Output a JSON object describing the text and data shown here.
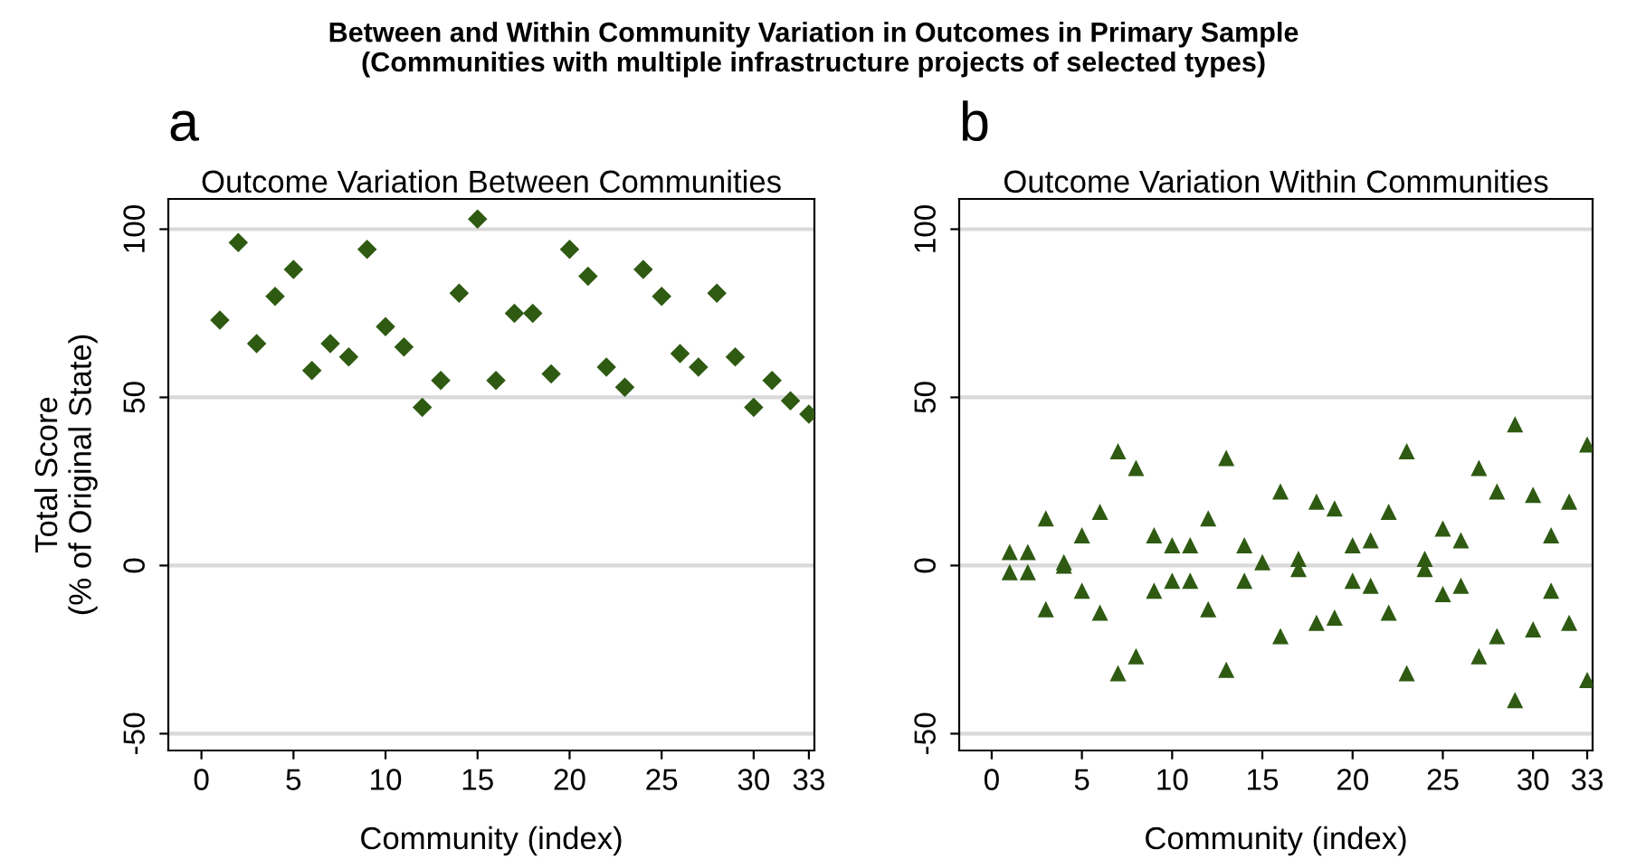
{
  "chart_data": [
    {
      "type": "scatter",
      "title": "Outcome Variation Between Communities",
      "xlabel": "Community (index)",
      "ylabel": "Total Score\n(% of Original State)",
      "annotations": [
        "Between and Within Community Variation in Outcomes in Primary Sample\n(Communities with multiple infrastructure projects of selected types)",
        "a"
      ],
      "x": [
        1,
        2,
        3,
        4,
        5,
        6,
        7,
        8,
        9,
        10,
        11,
        12,
        13,
        14,
        15,
        16,
        17,
        18,
        19,
        20,
        21,
        22,
        23,
        24,
        25,
        26,
        27,
        28,
        29,
        30,
        31,
        32,
        33
      ],
      "series": [
        {
          "color": "#2e5a12",
          "values": [
            73,
            96,
            66,
            80,
            88,
            58,
            66,
            62,
            94,
            71,
            65,
            47,
            55,
            81,
            103,
            55,
            75,
            75,
            57,
            94,
            86,
            59,
            53,
            88,
            80,
            63,
            59,
            81,
            62,
            47,
            55,
            49,
            45
          ]
        }
      ],
      "marker": "diamond",
      "grid": "y",
      "xlim": [
        -1.8,
        33.3
      ],
      "ylim": [
        -55,
        109
      ],
      "xticks": [
        0,
        5,
        10,
        15,
        20,
        25,
        30,
        33
      ],
      "yticks": [
        -50,
        0,
        50,
        100
      ]
    },
    {
      "type": "scatter",
      "title": "Outcome Variation Within Communities",
      "xlabel": "Community (index)",
      "annotations": [
        "b"
      ],
      "x": [
        1,
        1,
        2,
        2,
        3,
        3,
        4,
        4,
        5,
        5,
        6,
        6,
        7,
        7,
        8,
        8,
        9,
        9,
        10,
        10,
        11,
        11,
        12,
        12,
        13,
        13,
        14,
        14,
        15,
        16,
        16,
        17,
        17,
        18,
        18,
        19,
        19,
        20,
        20,
        21,
        21,
        22,
        22,
        23,
        23,
        24,
        24,
        25,
        25,
        26,
        26,
        27,
        27,
        28,
        28,
        29,
        29,
        30,
        30,
        31,
        31,
        32,
        32,
        33,
        33
      ],
      "series": [
        {
          "color": "#2e5a12",
          "values": [
            4,
            -2,
            4,
            -2,
            14,
            -13,
            1,
            0,
            9,
            -7.5,
            16,
            -14,
            34,
            -32,
            29,
            -27,
            9,
            -7.5,
            6,
            -4.5,
            6,
            -4.5,
            14,
            -13,
            32,
            -31,
            6,
            -4.5,
            1,
            22,
            -21,
            2,
            -1,
            19,
            -17,
            17,
            -15.5,
            6,
            -4.5,
            7.5,
            -6,
            16,
            -14,
            34,
            -32,
            2,
            -1,
            11,
            -8.5,
            7.5,
            -6,
            29,
            -27,
            22,
            -21,
            42,
            -40,
            21,
            -19,
            9,
            -7.5,
            19,
            -17,
            36,
            -34
          ]
        }
      ],
      "marker": "triangle",
      "grid": "y",
      "xlim": [
        -1.8,
        33.3
      ],
      "ylim": [
        -55,
        109
      ],
      "xticks": [
        0,
        5,
        10,
        15,
        20,
        25,
        30,
        33
      ],
      "yticks": [
        -50,
        0,
        50,
        100
      ]
    }
  ]
}
